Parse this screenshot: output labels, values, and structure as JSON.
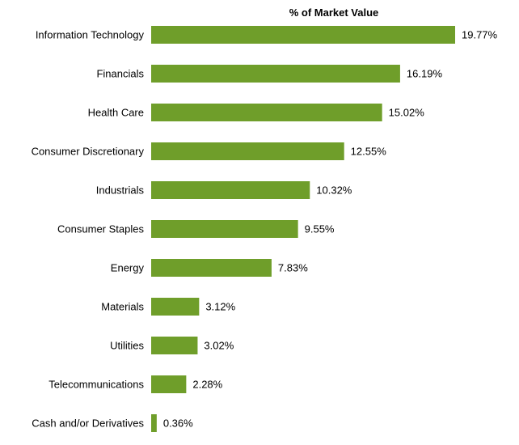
{
  "chart_data": {
    "type": "bar",
    "orientation": "horizontal",
    "title": "% of Market Value",
    "xlabel": "",
    "ylabel": "",
    "xlim": [
      0,
      20
    ],
    "grid": false,
    "bar_color": "#6f9e2a",
    "categories": [
      "Information Technology",
      "Financials",
      "Health Care",
      "Consumer Discretionary",
      "Industrials",
      "Consumer Staples",
      "Energy",
      "Materials",
      "Utilities",
      "Telecommunications",
      "Cash and/or Derivatives"
    ],
    "values": [
      19.77,
      16.19,
      15.02,
      12.55,
      10.32,
      9.55,
      7.83,
      3.12,
      3.02,
      2.28,
      0.36
    ],
    "value_labels": [
      "19.77%",
      "16.19%",
      "15.02%",
      "12.55%",
      "10.32%",
      "9.55%",
      "7.83%",
      "3.12%",
      "3.02%",
      "2.28%",
      "0.36%"
    ]
  }
}
